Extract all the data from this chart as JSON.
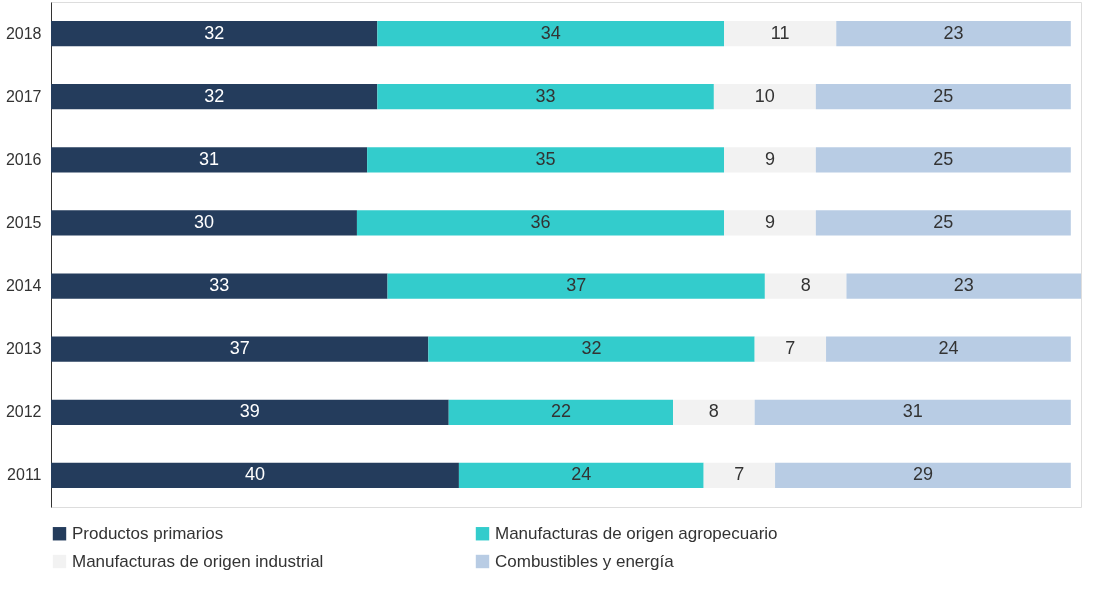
{
  "chart_data": {
    "type": "bar",
    "orientation": "horizontal",
    "stacked": true,
    "data_labels": true,
    "legend": "bottom",
    "grid": false,
    "tick_labels": "y",
    "categories": [
      "2018",
      "2017",
      "2016",
      "2015",
      "2014",
      "2013",
      "2012",
      "2011"
    ],
    "series": [
      {
        "name": "Productos primarios",
        "color": "#243c5c",
        "values": [
          32,
          32,
          31,
          30,
          33,
          37,
          39,
          40
        ]
      },
      {
        "name": "Manufacturas de origen agropecuario",
        "color": "#33cccc",
        "values": [
          34,
          33,
          35,
          36,
          37,
          32,
          22,
          24
        ]
      },
      {
        "name": "Manufacturas de origen industrial",
        "color": "#f2f2f2",
        "values": [
          11,
          10,
          9,
          9,
          8,
          7,
          8,
          7
        ]
      },
      {
        "name": "Combustibles y energía",
        "color": "#b8cce4",
        "values": [
          23,
          25,
          25,
          25,
          23,
          24,
          31,
          29
        ]
      }
    ]
  }
}
